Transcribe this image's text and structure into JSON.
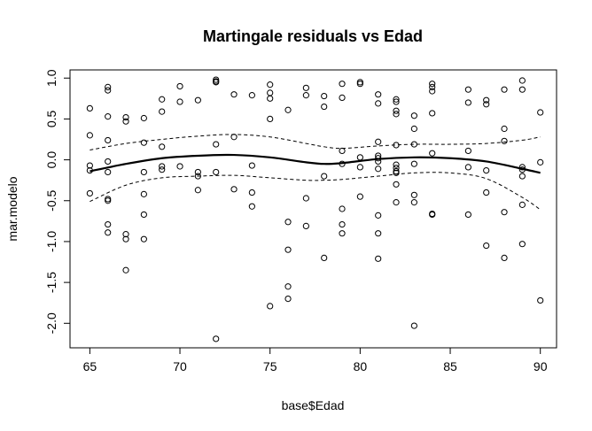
{
  "chart_data": {
    "type": "scatter",
    "title": "Martingale residuals vs Edad",
    "xlabel": "base$Edad",
    "ylabel": "mar.modelo",
    "xlim": [
      63.9,
      90.9
    ],
    "ylim": [
      -2.3,
      1.1
    ],
    "xticks": [
      65,
      70,
      75,
      80,
      85,
      90
    ],
    "yticks": [
      -2.0,
      -1.5,
      -1.0,
      -0.5,
      0.0,
      0.5,
      1.0
    ],
    "ytick_labels": [
      "-2.0",
      "-1.5",
      "-1.0",
      "-0.5",
      "0.0",
      "0.5",
      "1.0"
    ],
    "grid": false,
    "points": [
      [
        65,
        0.63
      ],
      [
        65,
        0.3
      ],
      [
        65,
        -0.07
      ],
      [
        65,
        -0.13
      ],
      [
        65,
        -0.41
      ],
      [
        66,
        0.89
      ],
      [
        66,
        0.85
      ],
      [
        66,
        0.53
      ],
      [
        66,
        0.24
      ],
      [
        66,
        -0.02
      ],
      [
        66,
        -0.15
      ],
      [
        66,
        -0.48
      ],
      [
        66,
        -0.5
      ],
      [
        66,
        -0.79
      ],
      [
        66,
        -0.89
      ],
      [
        67,
        0.52
      ],
      [
        67,
        0.47
      ],
      [
        67,
        -0.91
      ],
      [
        67,
        -0.97
      ],
      [
        67,
        -1.35
      ],
      [
        68,
        0.51
      ],
      [
        68,
        0.21
      ],
      [
        68,
        -0.15
      ],
      [
        68,
        -0.42
      ],
      [
        68,
        -0.67
      ],
      [
        68,
        -0.97
      ],
      [
        69,
        0.74
      ],
      [
        69,
        0.59
      ],
      [
        69,
        0.16
      ],
      [
        69,
        -0.08
      ],
      [
        69,
        -0.12
      ],
      [
        70,
        0.9
      ],
      [
        70,
        0.71
      ],
      [
        70,
        -0.08
      ],
      [
        71,
        0.73
      ],
      [
        71,
        -0.15
      ],
      [
        71,
        -0.2
      ],
      [
        71,
        -0.37
      ],
      [
        72,
        0.98
      ],
      [
        72,
        0.96
      ],
      [
        72,
        0.95
      ],
      [
        72,
        0.19
      ],
      [
        72,
        -0.15
      ],
      [
        72,
        -2.19
      ],
      [
        73,
        0.8
      ],
      [
        73,
        0.28
      ],
      [
        73,
        -0.36
      ],
      [
        74,
        0.79
      ],
      [
        74,
        -0.07
      ],
      [
        74,
        -0.4
      ],
      [
        74,
        -0.57
      ],
      [
        75,
        0.92
      ],
      [
        75,
        0.82
      ],
      [
        75,
        0.75
      ],
      [
        75,
        0.5
      ],
      [
        75,
        -1.79
      ],
      [
        76,
        0.61
      ],
      [
        76,
        -0.76
      ],
      [
        76,
        -1.1
      ],
      [
        76,
        -1.55
      ],
      [
        76,
        -1.7
      ],
      [
        77,
        0.88
      ],
      [
        77,
        0.79
      ],
      [
        77,
        -0.47
      ],
      [
        77,
        -0.81
      ],
      [
        78,
        0.78
      ],
      [
        78,
        0.65
      ],
      [
        78,
        -0.2
      ],
      [
        78,
        -1.2
      ],
      [
        79,
        0.93
      ],
      [
        79,
        0.76
      ],
      [
        79,
        0.11
      ],
      [
        79,
        -0.05
      ],
      [
        79,
        -0.6
      ],
      [
        79,
        -0.79
      ],
      [
        79,
        -0.9
      ],
      [
        80,
        0.95
      ],
      [
        80,
        0.93
      ],
      [
        80,
        0.03
      ],
      [
        80,
        -0.09
      ],
      [
        80,
        -0.45
      ],
      [
        81,
        0.8
      ],
      [
        81,
        0.69
      ],
      [
        81,
        0.22
      ],
      [
        81,
        0.05
      ],
      [
        81,
        0.02
      ],
      [
        81,
        -0.02
      ],
      [
        81,
        -0.11
      ],
      [
        81,
        -0.68
      ],
      [
        81,
        -0.9
      ],
      [
        81,
        -1.21
      ],
      [
        82,
        0.74
      ],
      [
        82,
        0.71
      ],
      [
        82,
        0.6
      ],
      [
        82,
        0.56
      ],
      [
        82,
        0.18
      ],
      [
        82,
        -0.06
      ],
      [
        82,
        -0.1
      ],
      [
        82,
        -0.14
      ],
      [
        82,
        -0.16
      ],
      [
        82,
        -0.3
      ],
      [
        82,
        -0.52
      ],
      [
        83,
        0.54
      ],
      [
        83,
        0.38
      ],
      [
        83,
        0.19
      ],
      [
        83,
        -0.05
      ],
      [
        83,
        -0.43
      ],
      [
        83,
        -0.52
      ],
      [
        83,
        -2.03
      ],
      [
        84,
        0.93
      ],
      [
        84,
        0.89
      ],
      [
        84,
        0.84
      ],
      [
        84,
        0.57
      ],
      [
        84,
        0.08
      ],
      [
        84,
        -0.66
      ],
      [
        84,
        -0.67
      ],
      [
        86,
        0.86
      ],
      [
        86,
        0.7
      ],
      [
        86,
        0.11
      ],
      [
        86,
        -0.09
      ],
      [
        86,
        -0.67
      ],
      [
        87,
        0.73
      ],
      [
        87,
        0.68
      ],
      [
        87,
        -0.13
      ],
      [
        87,
        -0.4
      ],
      [
        87,
        -1.05
      ],
      [
        88,
        0.86
      ],
      [
        88,
        0.38
      ],
      [
        88,
        0.23
      ],
      [
        88,
        -0.64
      ],
      [
        88,
        -1.2
      ],
      [
        89,
        0.97
      ],
      [
        89,
        0.86
      ],
      [
        89,
        -0.09
      ],
      [
        89,
        -0.12
      ],
      [
        89,
        -0.2
      ],
      [
        89,
        -0.55
      ],
      [
        89,
        -1.03
      ],
      [
        90,
        0.58
      ],
      [
        90,
        -0.03
      ],
      [
        90,
        -1.72
      ]
    ],
    "smooth": {
      "x": [
        65,
        67,
        69,
        71,
        73,
        75,
        77,
        78,
        79,
        81,
        83,
        85,
        87,
        89,
        90
      ],
      "y": [
        -0.14,
        -0.05,
        0.02,
        0.05,
        0.06,
        0.03,
        -0.03,
        -0.05,
        -0.04,
        0.01,
        0.03,
        0.02,
        -0.02,
        -0.11,
        -0.16
      ],
      "upper": [
        0.12,
        0.2,
        0.25,
        0.29,
        0.31,
        0.28,
        0.2,
        0.16,
        0.14,
        0.17,
        0.19,
        0.19,
        0.2,
        0.24,
        0.28
      ],
      "lower": [
        -0.51,
        -0.31,
        -0.22,
        -0.2,
        -0.19,
        -0.22,
        -0.25,
        -0.25,
        -0.24,
        -0.2,
        -0.16,
        -0.16,
        -0.23,
        -0.46,
        -0.61
      ]
    }
  }
}
